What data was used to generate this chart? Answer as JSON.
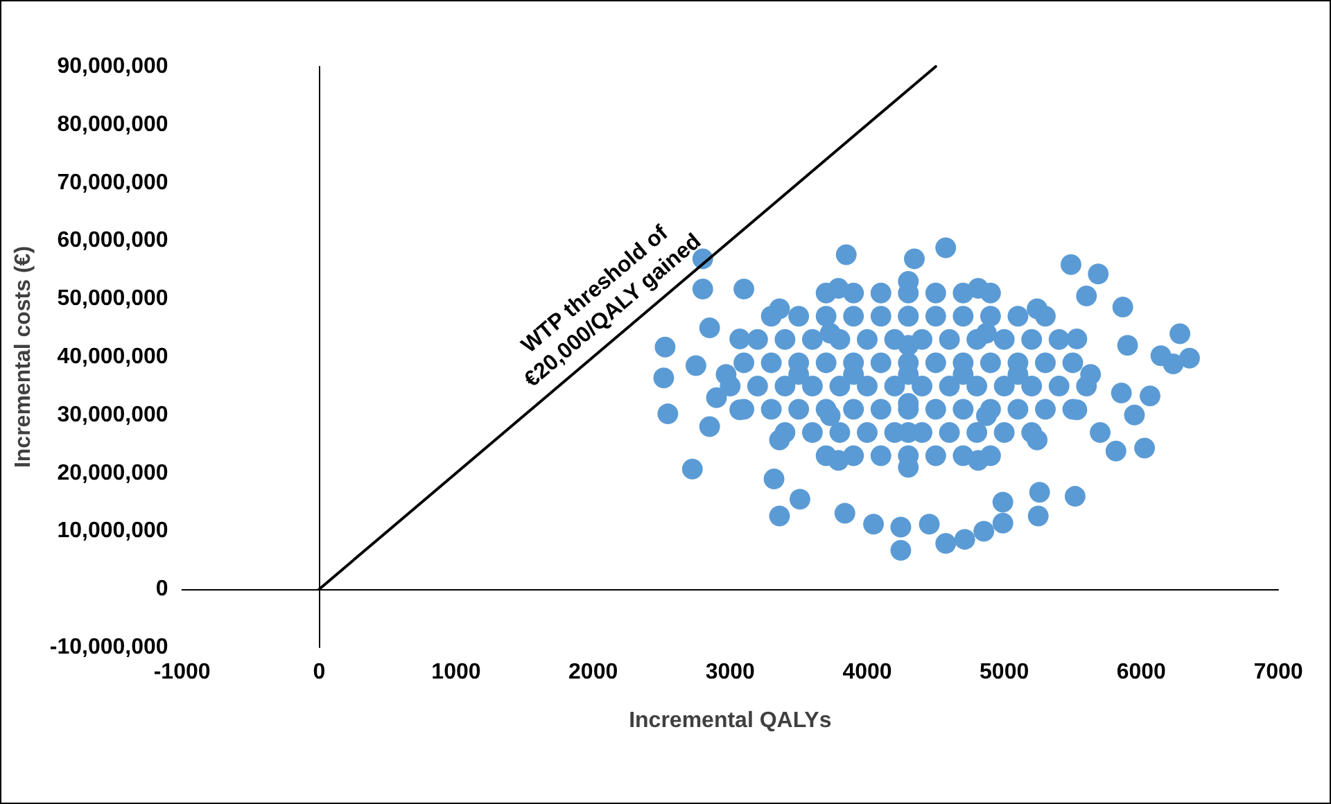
{
  "chart_data": {
    "type": "scatter",
    "xlabel": "Incremental QALYs",
    "ylabel": "Incremental costs (€)",
    "annotations": [
      "WTP threshold of\n€20,000/QALY gained"
    ],
    "xlim": [
      -1000,
      7000
    ],
    "xticks": [
      -1000,
      0,
      1000,
      2000,
      3000,
      4000,
      5000,
      6000,
      7000
    ],
    "ylim": [
      -10000000,
      90000000
    ],
    "yticks": [
      {
        "value": -10000000,
        "label": "-10,000,000"
      },
      0,
      {
        "value": 10000000,
        "label": "10,000,000"
      },
      {
        "value": 20000000,
        "label": "20,000,000"
      },
      {
        "value": 30000000,
        "label": "30,000,000"
      },
      {
        "value": 40000000,
        "label": "40,000,000"
      },
      {
        "value": 50000000,
        "label": "50,000,000"
      },
      {
        "value": 60000000,
        "label": "60,000,000"
      },
      {
        "value": 70000000,
        "label": "70,000,000"
      },
      {
        "value": 80000000,
        "label": "80,000,000"
      },
      {
        "value": 90000000,
        "label": "90,000,000"
      }
    ],
    "marker": "circle",
    "series": [
      {
        "type": "line",
        "color": "#000000",
        "marker": "none",
        "line_style": "solid",
        "x": [
          0,
          4500
        ],
        "values": [
          0,
          90000000
        ]
      },
      {
        "color": "#5b9bd5",
        "x": [
          2800,
          2525,
          2515,
          2545,
          2724,
          3320,
          3360,
          3509,
          3837,
          4046,
          4245,
          4245,
          4453,
          4573,
          4712,
          4851,
          4990,
          4990,
          5258,
          5248,
          5517,
          6282,
          6352,
          6233,
          6143,
          6064,
          6024,
          5815,
          5855,
          5487,
          5686,
          5865,
          4573,
          3847,
          4344,
          2800,
          3100,
          5630,
          5530,
          5240,
          4810,
          4300,
          3790,
          3360,
          3070,
          2970,
          3070,
          3360,
          3790,
          4300,
          4810,
          5240,
          5530,
          5100,
          4870,
          4300,
          3730,
          3500,
          3730,
          4300,
          4870,
          4700,
          4300,
          3900,
          4300,
          4300,
          2850,
          2750,
          2900,
          2850,
          5900,
          5950,
          5700,
          5600
        ],
        "values": [
          56900000,
          41700000,
          36400000,
          30200000,
          20700000,
          19000000,
          12600000,
          15500000,
          13100000,
          11200000,
          10700000,
          6700000,
          11200000,
          7900000,
          8600000,
          10000000,
          11400000,
          15000000,
          16700000,
          12600000,
          16000000,
          44000000,
          39800000,
          38800000,
          40200000,
          33300000,
          24300000,
          23800000,
          33800000,
          55900000,
          54300000,
          48600000,
          58800000,
          57600000,
          56900000,
          51700000,
          51700000,
          37000000,
          43100000,
          48300000,
          51800000,
          53000000,
          51800000,
          48300000,
          43100000,
          37000000,
          30900000,
          25700000,
          22200000,
          21000000,
          22200000,
          25700000,
          30900000,
          37000000,
          44100000,
          47000000,
          44100000,
          37000000,
          29900000,
          27000000,
          29900000,
          37000000,
          42000000,
          37000000,
          32000000,
          37000000,
          45000000,
          38500000,
          33000000,
          28000000,
          42000000,
          30000000,
          27000000,
          50500000
        ]
      },
      {
        "color": "#5b9bd5",
        "x": [
          3700,
          3900,
          4100,
          4300,
          4500,
          4700,
          4900,
          3400,
          3600,
          3800,
          4000,
          4200,
          4400,
          4600,
          4800,
          5000,
          5200,
          3100,
          3300,
          3500,
          3700,
          3900,
          4100,
          4300,
          4500,
          4700,
          4900,
          5100,
          5300,
          5500,
          3000,
          3200,
          3400,
          3600,
          3800,
          4000,
          4200,
          4400,
          4600,
          4800,
          5000,
          5200,
          5400,
          5600,
          3100,
          3300,
          3500,
          3700,
          3900,
          4100,
          4300,
          4500,
          4700,
          4900,
          5100,
          5300,
          5500,
          3200,
          3400,
          3600,
          3800,
          4000,
          4200,
          4400,
          4600,
          4800,
          5000,
          5200,
          5400,
          3300,
          3500,
          3700,
          3900,
          4100,
          4300,
          4500,
          4700,
          4900,
          5100,
          5300,
          3700,
          3900,
          4100,
          4300,
          4500,
          4700,
          4900
        ],
        "values": [
          23000000,
          23000000,
          23000000,
          23000000,
          23000000,
          23000000,
          23000000,
          27000000,
          27000000,
          27000000,
          27000000,
          27000000,
          27000000,
          27000000,
          27000000,
          27000000,
          27000000,
          31000000,
          31000000,
          31000000,
          31000000,
          31000000,
          31000000,
          31000000,
          31000000,
          31000000,
          31000000,
          31000000,
          31000000,
          31000000,
          35000000,
          35000000,
          35000000,
          35000000,
          35000000,
          35000000,
          35000000,
          35000000,
          35000000,
          35000000,
          35000000,
          35000000,
          35000000,
          35000000,
          39000000,
          39000000,
          39000000,
          39000000,
          39000000,
          39000000,
          39000000,
          39000000,
          39000000,
          39000000,
          39000000,
          39000000,
          39000000,
          43000000,
          43000000,
          43000000,
          43000000,
          43000000,
          43000000,
          43000000,
          43000000,
          43000000,
          43000000,
          43000000,
          43000000,
          47000000,
          47000000,
          47000000,
          47000000,
          47000000,
          47000000,
          47000000,
          47000000,
          47000000,
          47000000,
          47000000,
          51000000,
          51000000,
          51000000,
          51000000,
          51000000,
          51000000,
          51000000
        ]
      }
    ]
  }
}
